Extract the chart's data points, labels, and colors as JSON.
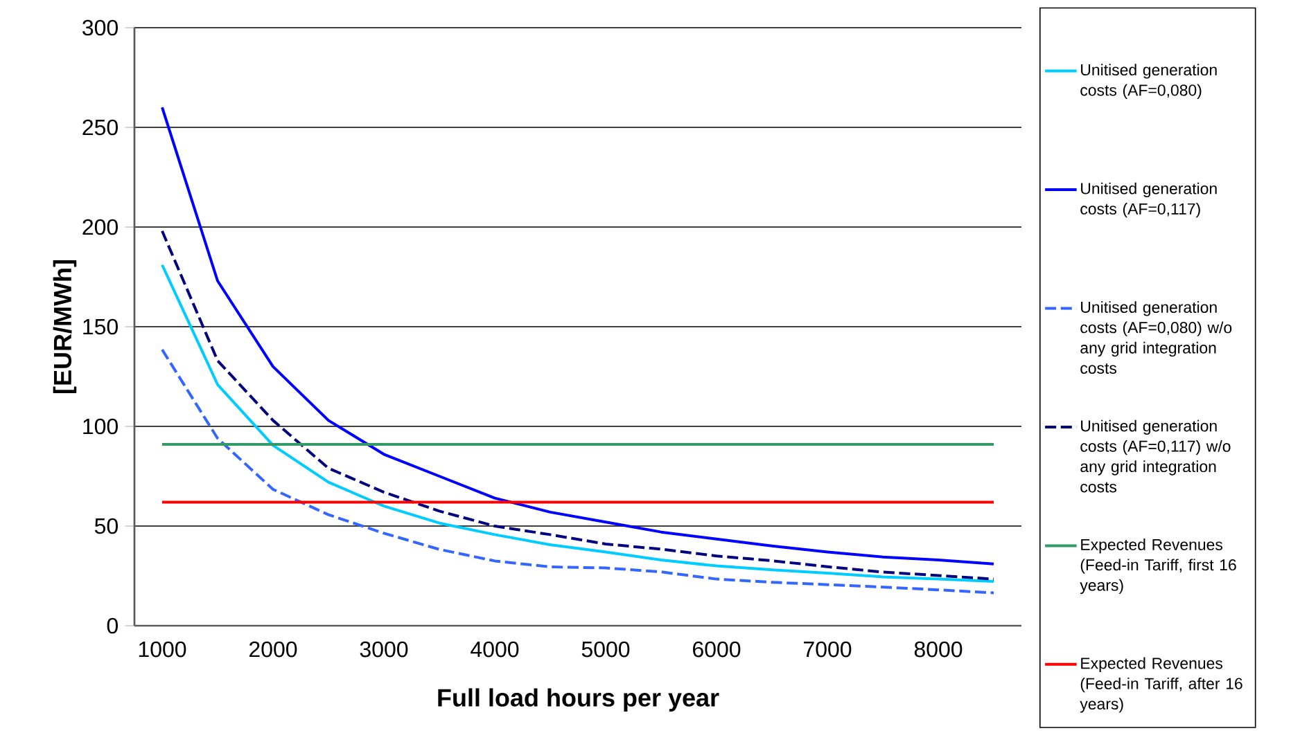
{
  "chart_data": {
    "type": "line",
    "xlabel": "Full load hours per year",
    "ylabel": "[EUR/MWh]",
    "categories": [
      "1000",
      null,
      "2000",
      null,
      "3000",
      null,
      "4000",
      null,
      "5000",
      null,
      "6000",
      null,
      "7000",
      null,
      "8000",
      null
    ],
    "ylim": [
      0,
      300
    ],
    "yticks": [
      0,
      50,
      100,
      150,
      200,
      250,
      300
    ],
    "grid": "y",
    "legend": "right",
    "marker": "none",
    "series": [
      {
        "name": "Unitised generation costs (AF=0,080)",
        "color": "#00ccff",
        "line_style": "solid",
        "values": [
          181,
          121,
          90.5,
          72,
          60,
          51.5,
          45.7,
          40.6,
          37,
          33,
          30,
          28,
          26.4,
          24.5,
          23.4,
          22.2
        ]
      },
      {
        "name": "Unitised generation costs (AF=0,117)",
        "color": "#0000ff",
        "line_style": "solid",
        "values": [
          260,
          173,
          130,
          103,
          86,
          75,
          64,
          57,
          52,
          47,
          43.5,
          40,
          37,
          34.5,
          33,
          31
        ]
      },
      {
        "name": "Unitised generation costs (AF=0,080) w/o any grid integration costs",
        "color": "#3366ff",
        "line_style": "dashed",
        "values": [
          138.5,
          94,
          68.4,
          55.7,
          46.4,
          38.3,
          32.5,
          29.5,
          29,
          27,
          23.4,
          21.8,
          20.6,
          19.4,
          18,
          16.5
        ]
      },
      {
        "name": "Unitised generation costs (AF=0,117) w/o any grid integration costs",
        "color": "#000080",
        "line_style": "dashed",
        "values": [
          198,
          133,
          103,
          79,
          67,
          57.5,
          50,
          45.7,
          41,
          38.4,
          35,
          32.6,
          29.6,
          26.9,
          25.2,
          23.4
        ]
      },
      {
        "name": "Expected Revenues (Feed-in Tariff, first 16 years)",
        "color": "#339966",
        "line_style": "solid",
        "values": [
          91,
          91,
          91,
          91,
          91,
          91,
          91,
          91,
          91,
          91,
          91,
          91,
          91,
          91,
          91,
          91
        ]
      },
      {
        "name": "Expected Revenues (Feed-in Tariff, after 16 years)",
        "color": "#ff0000",
        "line_style": "solid",
        "values": [
          62,
          62,
          62,
          62,
          62,
          62,
          62,
          62,
          62,
          62,
          62,
          62,
          62,
          62,
          62,
          62
        ]
      }
    ]
  }
}
